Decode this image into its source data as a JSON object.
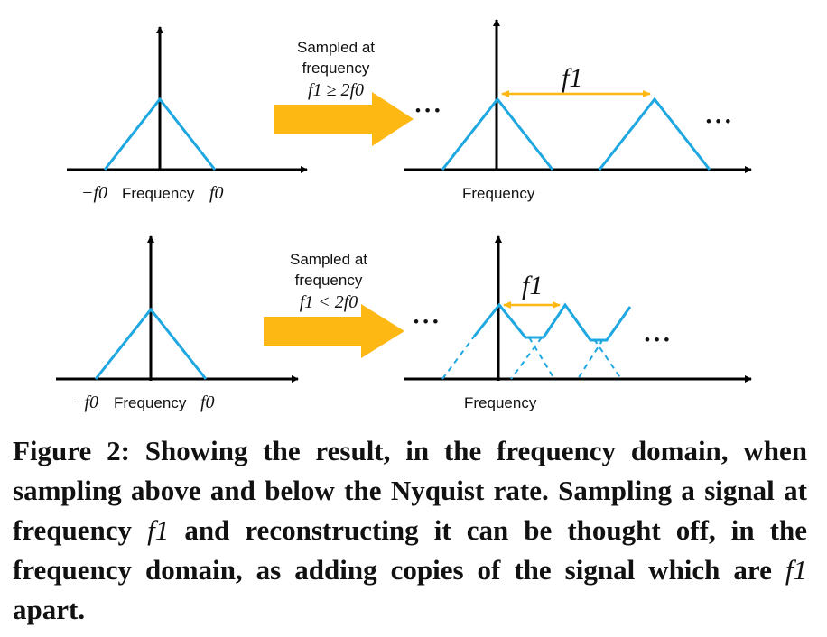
{
  "colors": {
    "spectrum": "#1ea7e1",
    "arrow": "#fdb813",
    "interval": "#fdb813",
    "axis": "#000000",
    "text": "#111111"
  },
  "panels": {
    "top_left": {
      "neg_freq_label": "−f0",
      "axis_label": "Frequency",
      "pos_freq_label": "f0"
    },
    "top_arrow": {
      "line1": "Sampled at",
      "line2": "frequency",
      "condition": "f1 ≥ 2f0"
    },
    "top_right": {
      "left_ellipsis": "• • •",
      "right_ellipsis": "• • •",
      "spacing_label": "f1",
      "axis_label": "Frequency"
    },
    "bottom_left": {
      "neg_freq_label": "−f0",
      "axis_label": "Frequency",
      "pos_freq_label": "f0"
    },
    "bottom_arrow": {
      "line1": "Sampled at",
      "line2": "frequency",
      "condition": "f1 < 2f0"
    },
    "bottom_right": {
      "left_ellipsis": "• • •",
      "right_ellipsis": "• • •",
      "spacing_label": "f1",
      "axis_label": "Frequency"
    }
  },
  "caption": {
    "label": "Figure 2:",
    "text_before": "Showing the result, in the frequency domain, when sampling above and below the Nyquist rate. Sampling a signal at frequency",
    "symbol": "f1",
    "text_middle": "and reconstructing it can be thought off, in the frequency domain, as adding copies of the signal which are",
    "symbol2": "f1",
    "text_after": "apart."
  }
}
